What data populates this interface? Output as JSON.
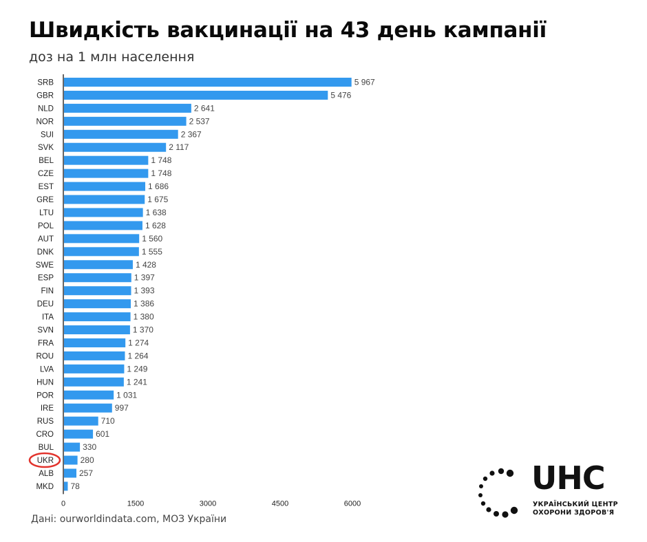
{
  "header": {
    "title": "Швидкість вакцинації на 43 день кампанії",
    "subtitle": "доз на 1 млн населення"
  },
  "footer": {
    "source": "Дані: ourworldindata.com, МОЗ України"
  },
  "logo": {
    "word": "UHC",
    "line1": "УКРАЇНСЬКИЙ ЦЕНТР",
    "line2": "ОХОРОНИ ЗДОРОВ'Я"
  },
  "colors": {
    "bar": "#3399ee",
    "highlight": "#e2332c",
    "axis": "#333333"
  },
  "chart_data": {
    "type": "bar",
    "orientation": "horizontal",
    "title": "Швидкість вакцинації на 43 день кампанії",
    "subtitle": "доз на 1 млн населення",
    "categories": [
      "SRB",
      "GBR",
      "NLD",
      "NOR",
      "SUI",
      "SVK",
      "BEL",
      "CZE",
      "EST",
      "GRE",
      "LTU",
      "POL",
      "AUT",
      "DNK",
      "SWE",
      "ESP",
      "FIN",
      "DEU",
      "ITA",
      "SVN",
      "FRA",
      "ROU",
      "LVA",
      "HUN",
      "POR",
      "IRE",
      "RUS",
      "CRO",
      "BUL",
      "UKR",
      "ALB",
      "MKD"
    ],
    "values": [
      5967,
      5476,
      2641,
      2537,
      2367,
      2117,
      1748,
      1748,
      1686,
      1675,
      1638,
      1628,
      1560,
      1555,
      1428,
      1397,
      1393,
      1386,
      1380,
      1370,
      1274,
      1264,
      1249,
      1241,
      1031,
      997,
      710,
      601,
      330,
      280,
      257,
      78
    ],
    "value_labels": [
      "5 967",
      "5 476",
      "2 641",
      "2 537",
      "2 367",
      "2 117",
      "1 748",
      "1 748",
      "1 686",
      "1 675",
      "1 638",
      "1 628",
      "1 560",
      "1 555",
      "1 428",
      "1 397",
      "1 393",
      "1 386",
      "1 380",
      "1 370",
      "1 274",
      "1 264",
      "1 249",
      "1 241",
      "1 031",
      "997",
      "710",
      "601",
      "330",
      "280",
      "257",
      "78"
    ],
    "x_ticks": [
      0,
      1500,
      3000,
      4500,
      6000
    ],
    "xlim": [
      0,
      6000
    ],
    "highlighted_category": "UKR",
    "grid": false,
    "legend": "none"
  }
}
